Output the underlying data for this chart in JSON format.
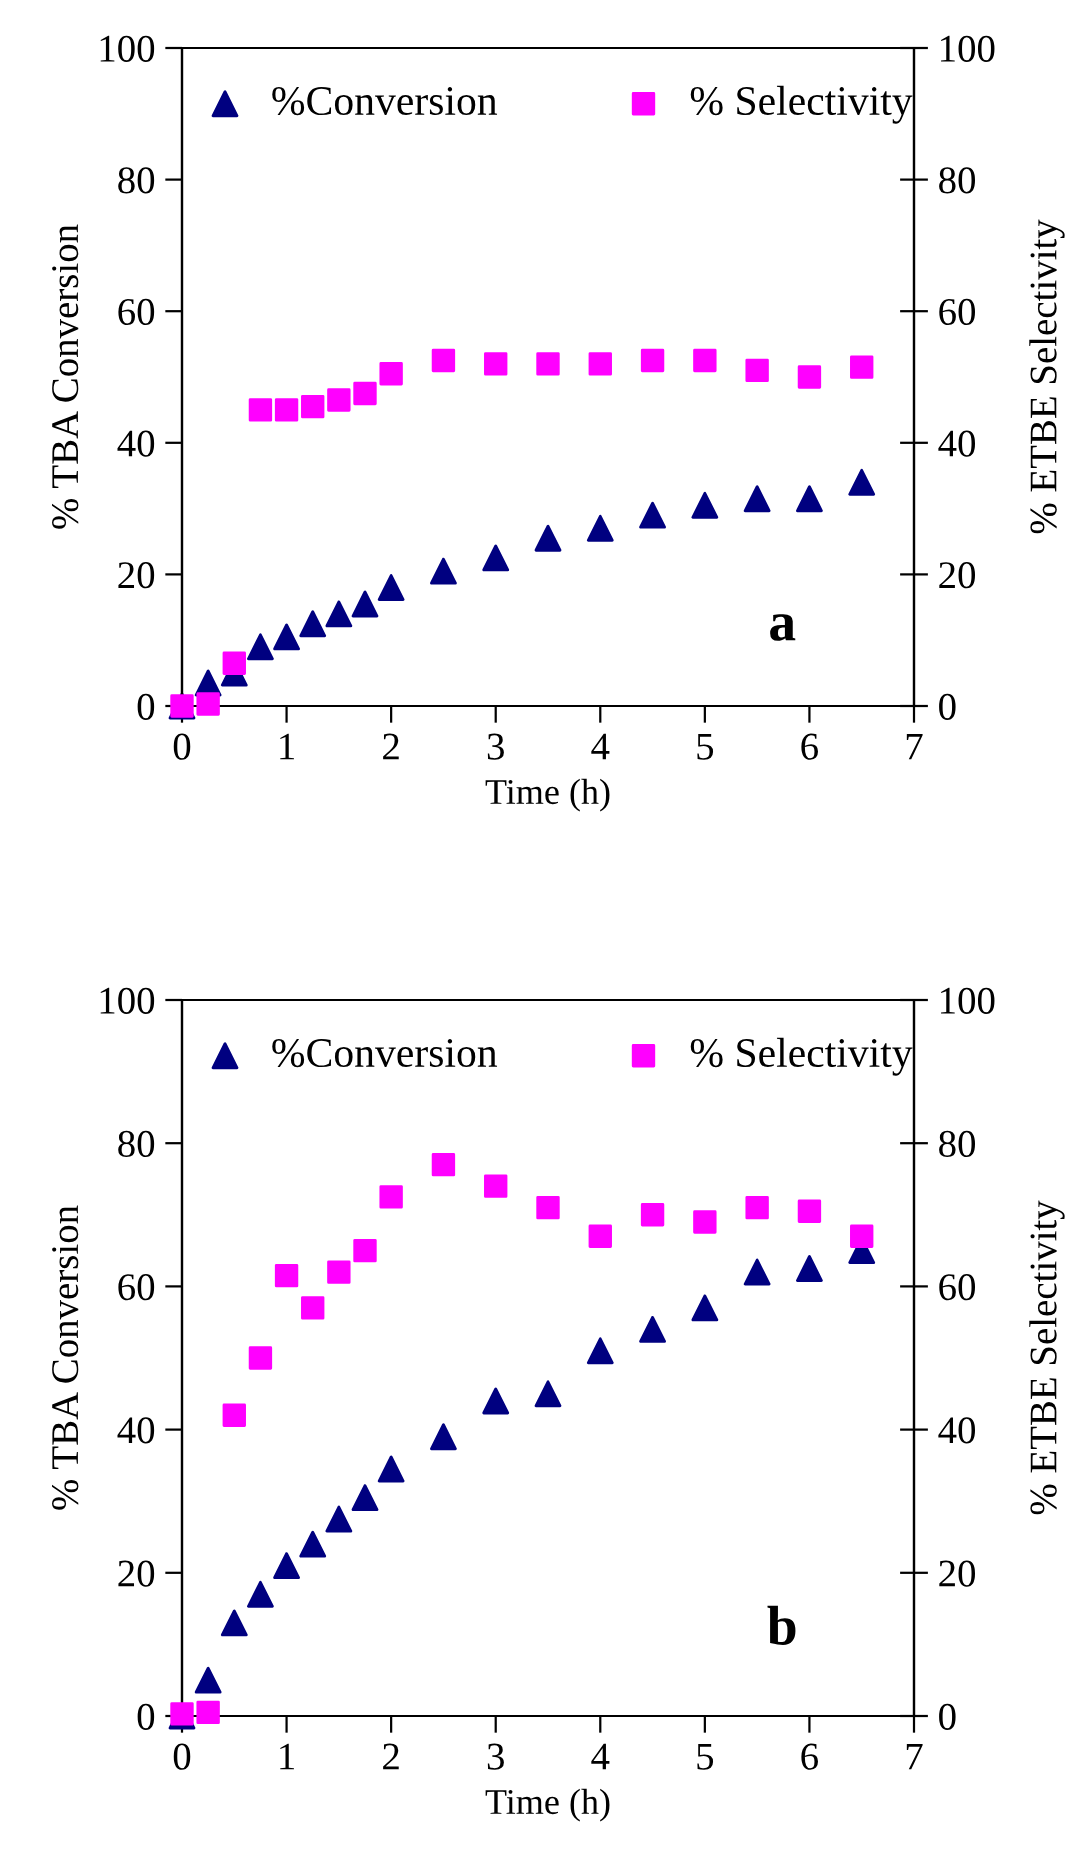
{
  "chart_data": [
    {
      "type": "scatter",
      "xlabel": "Time (h)",
      "ylabel": "% TBA Conversion",
      "y2label": "% ETBE Selectivity",
      "x": [
        0,
        0.25,
        0.5,
        0.75,
        1,
        1.25,
        1.5,
        1.75,
        2,
        2.5,
        3,
        3.5,
        4,
        4.5,
        5,
        5.5,
        6,
        6.5
      ],
      "series": [
        {
          "name": "%Conversion",
          "color": "#000080",
          "marker": "triangle",
          "values": [
            0,
            3.5,
            5,
            9,
            10.5,
            12.5,
            14,
            15.5,
            18,
            20.5,
            22.5,
            25.5,
            27,
            29,
            30.5,
            31.5,
            31.5,
            34
          ]
        },
        {
          "name": "% Selectivity",
          "color": "#ff00ff",
          "marker": "square",
          "axis": "y2",
          "values": [
            0,
            0.3,
            6.5,
            45,
            45,
            45.5,
            46.5,
            47.5,
            50.5,
            52.5,
            52,
            52,
            52,
            52.5,
            52.5,
            51,
            50,
            51.5
          ]
        }
      ],
      "xlim": [
        0,
        7
      ],
      "xticks": [
        0,
        1,
        2,
        3,
        4,
        5,
        6,
        7
      ],
      "ylim": [
        0,
        100
      ],
      "yticks": [
        0,
        20,
        40,
        60,
        80,
        100
      ],
      "y2lim": [
        0,
        100
      ],
      "y2ticks": [
        0,
        20,
        40,
        60,
        80,
        100
      ],
      "legend": "top",
      "annotations": [
        "a"
      ]
    },
    {
      "type": "scatter",
      "xlabel": "Time (h)",
      "ylabel": "% TBA Conversion",
      "y2label": "% ETBE Selectivity",
      "x": [
        0,
        0.25,
        0.5,
        0.75,
        1,
        1.25,
        1.5,
        1.75,
        2,
        2.5,
        3,
        3.5,
        4,
        4.5,
        5,
        5.5,
        6,
        6.5
      ],
      "series": [
        {
          "name": "%Conversion",
          "color": "#000080",
          "marker": "triangle",
          "values": [
            0,
            5,
            13,
            17,
            21,
            24,
            27.5,
            30.5,
            34.5,
            39,
            44,
            45,
            51,
            54,
            57,
            62,
            62.5,
            65
          ]
        },
        {
          "name": "% Selectivity",
          "color": "#ff00ff",
          "marker": "square",
          "axis": "y2",
          "values": [
            0.3,
            0.5,
            42,
            50,
            61.5,
            57,
            62,
            65,
            72.5,
            77,
            74,
            71,
            67,
            70,
            69,
            71,
            70.5,
            67
          ]
        }
      ],
      "xlim": [
        0,
        7
      ],
      "xticks": [
        0,
        1,
        2,
        3,
        4,
        5,
        6,
        7
      ],
      "ylim": [
        0,
        100
      ],
      "yticks": [
        0,
        20,
        40,
        60,
        80,
        100
      ],
      "y2lim": [
        0,
        100
      ],
      "y2ticks": [
        0,
        20,
        40,
        60,
        80,
        100
      ],
      "legend": "top",
      "annotations": [
        "b"
      ]
    }
  ]
}
